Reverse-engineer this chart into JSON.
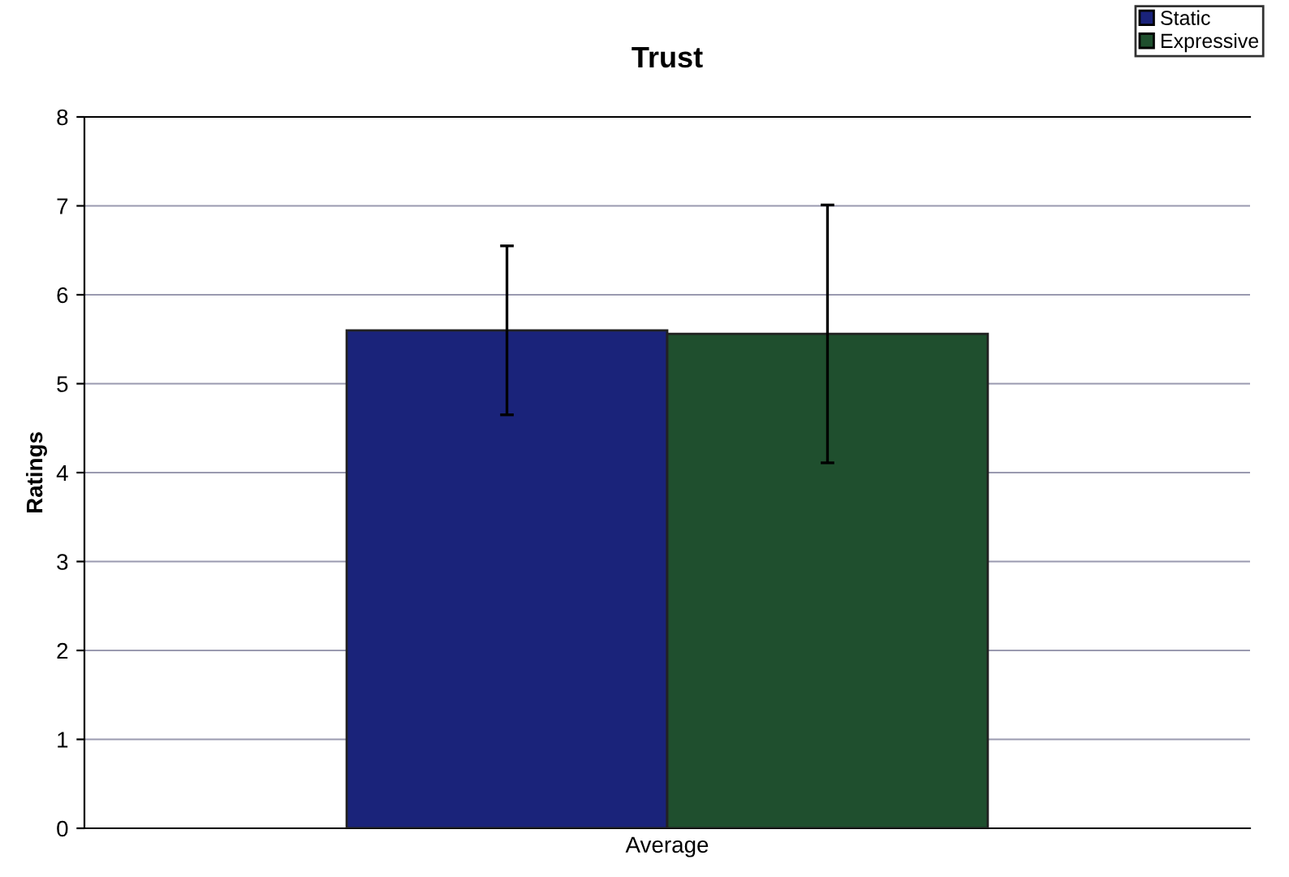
{
  "chart_data": {
    "type": "bar",
    "title": "Trust",
    "ylabel": "Ratings",
    "categories": [
      "Average"
    ],
    "series": [
      {
        "name": "Static",
        "color": "#1a237a",
        "values": [
          5.6
        ],
        "errors": [
          0.95
        ]
      },
      {
        "name": "Expressive",
        "color": "#1f4f2e",
        "values": [
          5.56
        ],
        "errors": [
          1.45
        ]
      }
    ],
    "ylim": [
      0,
      8
    ],
    "yticks": [
      0,
      1,
      2,
      3,
      4,
      5,
      6,
      7,
      8
    ],
    "grid": "y",
    "legend": "top right"
  }
}
